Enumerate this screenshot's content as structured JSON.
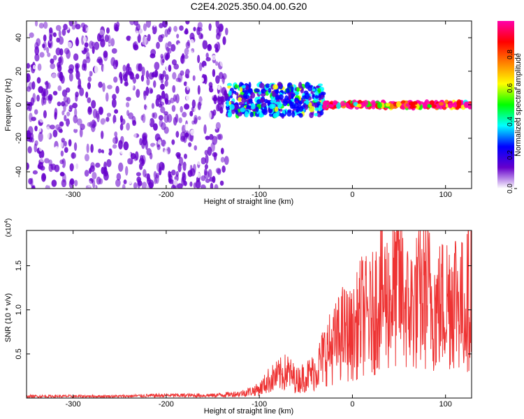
{
  "title": "C2E4.2025.350.04.00.G20",
  "chart_data": [
    {
      "type": "heatmap",
      "xlabel": "Height of straight line (km)",
      "ylabel": "Frequency (Hz)",
      "xlim": [
        -350,
        128
      ],
      "ylim": [
        -50,
        50
      ],
      "xticks": [
        -300,
        -200,
        -100,
        0,
        100
      ],
      "yticks": [
        -40,
        -20,
        0,
        20,
        40
      ],
      "colorbar": {
        "label": "Normalized spectral amplitude",
        "range": [
          0.0,
          1.0
        ],
        "ticks": [
          "0.0",
          "0.2",
          "0.4",
          "0.6",
          "0.8"
        ],
        "colors": [
          "#ffffff",
          "#6600cc",
          "#0000ff",
          "#00ffff",
          "#00ff00",
          "#ffff00",
          "#ff8000",
          "#ff0000",
          "#ff00aa"
        ]
      },
      "regions": [
        {
          "x_range": [
            -350,
            -135
          ],
          "freq_spread": [
            -50,
            50
          ],
          "amplitude": 0.1,
          "description_kind": "noise"
        },
        {
          "x_range": [
            -135,
            -30
          ],
          "freq_center": 3,
          "freq_spread": [
            -15,
            12
          ],
          "amplitude": 0.3
        },
        {
          "x_range": [
            -30,
            128
          ],
          "freq_center": 0,
          "freq_spread": [
            -3,
            3
          ],
          "amplitude": 0.95
        }
      ]
    },
    {
      "type": "line",
      "xlabel": "Height of straight line (km)",
      "ylabel": "SNR (10 * v/v)",
      "ylabel_scale": "(x10",
      "ylabel_scale_exp": "4",
      "ylabel_scale_close": ")",
      "xlim": [
        -350,
        128
      ],
      "ylim": [
        0,
        1.9
      ],
      "xticks": [
        -300,
        -200,
        -100,
        0,
        100
      ],
      "yticks": [
        "0.5",
        "1.0",
        "1.5"
      ],
      "series": [
        {
          "color": "#ee3333",
          "x": [
            -350,
            -300,
            -250,
            -200,
            -150,
            -120,
            -100,
            -90,
            -80,
            -70,
            -60,
            -50,
            -40,
            -30,
            -20,
            -10,
            0,
            10,
            20,
            30,
            40,
            50,
            60,
            70,
            80,
            90,
            100,
            110,
            120,
            128
          ],
          "y": [
            0.02,
            0.02,
            0.02,
            0.03,
            0.03,
            0.05,
            0.1,
            0.2,
            0.25,
            0.3,
            0.2,
            0.25,
            0.3,
            0.5,
            0.6,
            0.75,
            0.7,
            0.95,
            0.9,
            1.2,
            1.1,
            1.3,
            1.0,
            1.1,
            1.2,
            1.0,
            1.1,
            1.2,
            1.0,
            1.3
          ]
        }
      ]
    }
  ]
}
